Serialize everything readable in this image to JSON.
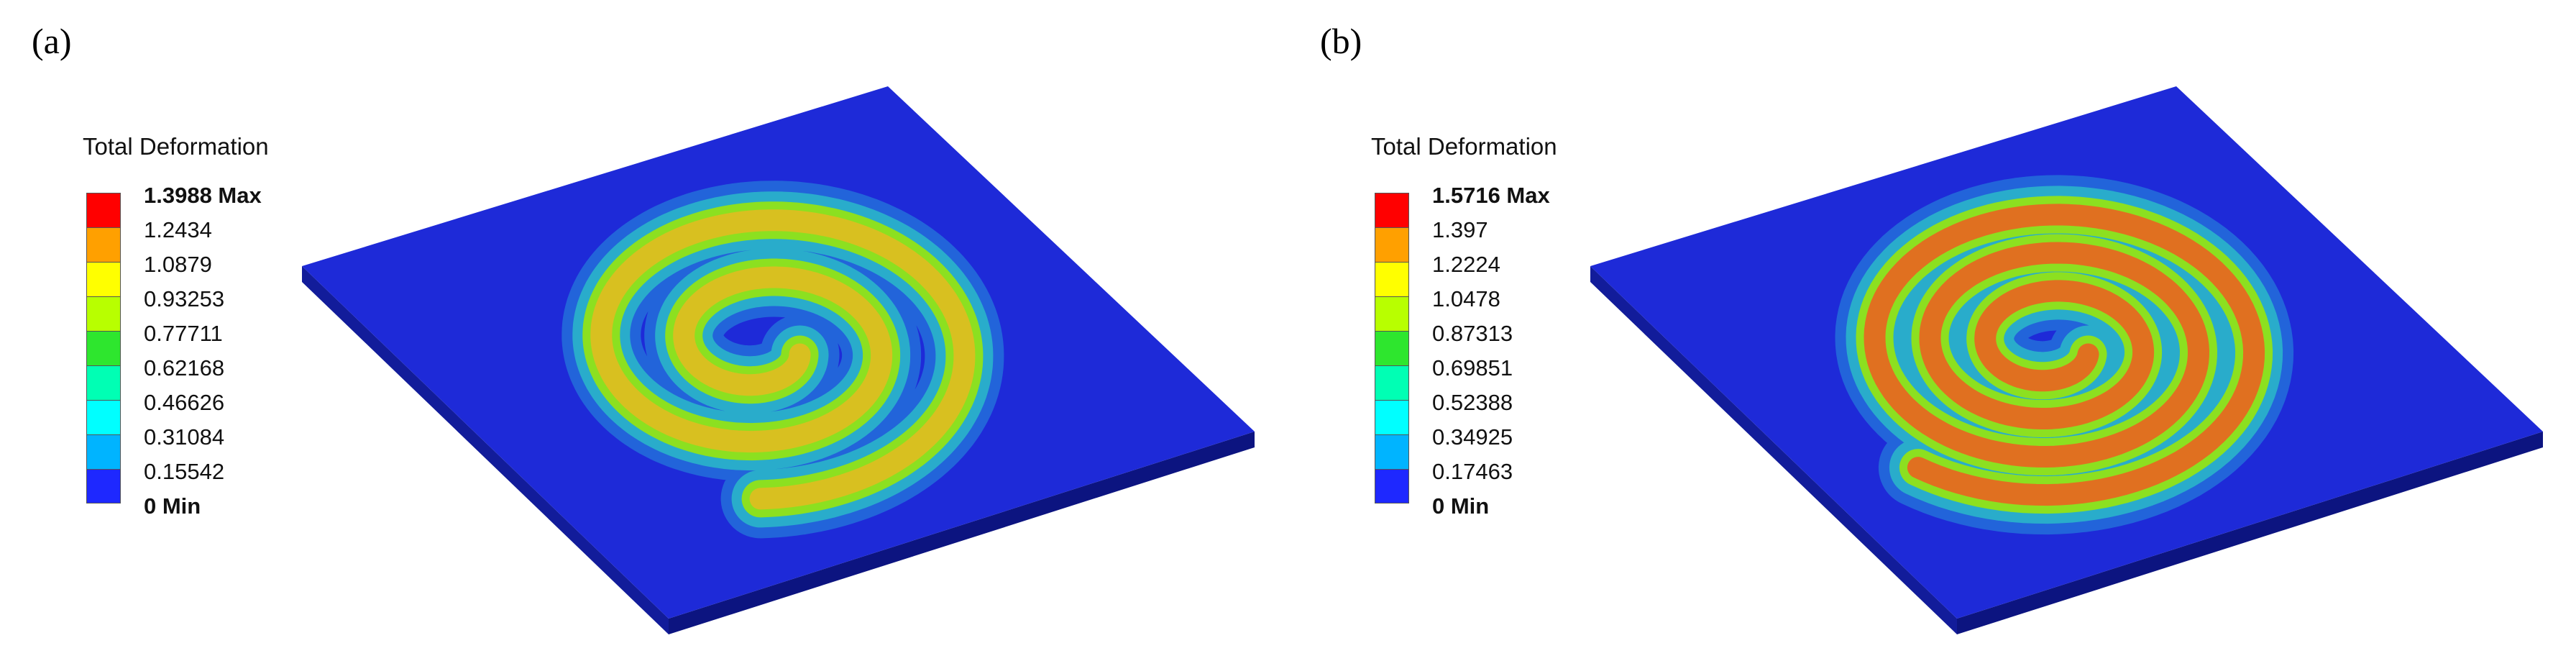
{
  "panels": [
    {
      "label": "(a)",
      "legend": {
        "title": "Total Deformation",
        "max_label": "1.3988 Max",
        "ticks": [
          "1.2434",
          "1.0879",
          "0.93253",
          "0.77711",
          "0.62168",
          "0.46626",
          "0.31084",
          "0.15542"
        ],
        "min_label": "0 Min"
      },
      "spiral_turns": 2.2,
      "peak_color": "#d8c020"
    },
    {
      "label": "(b)",
      "legend": {
        "title": "Total Deformation",
        "max_label": "1.5716 Max",
        "ticks": [
          "1.397",
          "1.2224",
          "1.0478",
          "0.87313",
          "0.69851",
          "0.52388",
          "0.34925",
          "0.17463"
        ],
        "min_label": "0 Min"
      },
      "spiral_turns": 3.3,
      "peak_color": "#e07020"
    }
  ],
  "colormap": [
    "#ff0000",
    "#ffa000",
    "#ffff00",
    "#b8ff00",
    "#2ee62e",
    "#00ffb4",
    "#00ffff",
    "#00b4ff",
    "#1e28ff"
  ],
  "plate_color": "#1e2ad8"
}
